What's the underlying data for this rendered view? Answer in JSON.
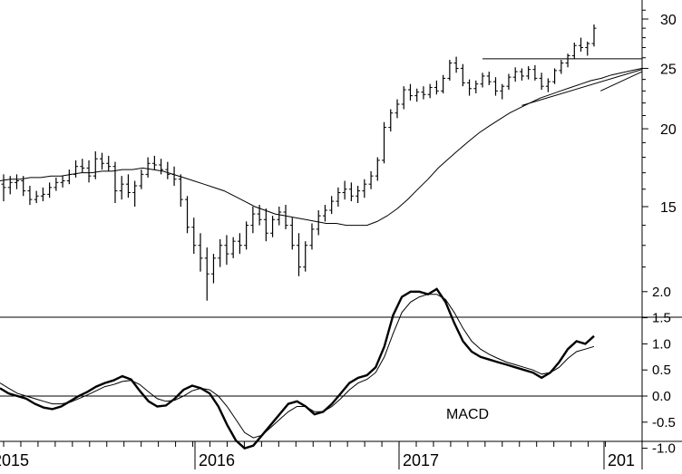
{
  "chart_data": [
    {
      "type": "ohlc",
      "scale": "log",
      "ylim": [
        10,
        32
      ],
      "y_ticks": [
        15,
        20,
        25,
        30
      ],
      "grid": false,
      "bar_color": "#000000",
      "line_color": "#000000",
      "ohlc": [
        [
          16.3,
          16.9,
          15.3,
          16.1
        ],
        [
          16.1,
          16.8,
          15.7,
          16.4
        ],
        [
          16.4,
          16.9,
          16.0,
          16.5
        ],
        [
          16.5,
          16.8,
          15.6,
          15.9
        ],
        [
          15.9,
          16.2,
          15.1,
          15.4
        ],
        [
          15.4,
          15.9,
          15.2,
          15.6
        ],
        [
          15.6,
          16.1,
          15.3,
          15.7
        ],
        [
          15.7,
          16.4,
          15.5,
          16.1
        ],
        [
          16.1,
          16.7,
          15.9,
          16.4
        ],
        [
          16.4,
          16.8,
          16.1,
          16.5
        ],
        [
          16.5,
          17.2,
          16.3,
          16.9
        ],
        [
          16.9,
          17.8,
          16.7,
          17.4
        ],
        [
          17.4,
          17.9,
          17.0,
          17.3
        ],
        [
          17.3,
          17.8,
          16.4,
          16.8
        ],
        [
          16.8,
          18.4,
          16.6,
          17.9
        ],
        [
          17.9,
          18.3,
          17.2,
          17.6
        ],
        [
          17.6,
          18.1,
          17.1,
          17.4
        ],
        [
          17.4,
          17.7,
          15.2,
          15.9
        ],
        [
          15.9,
          16.8,
          15.4,
          16.3
        ],
        [
          16.3,
          16.9,
          15.5,
          15.8
        ],
        [
          15.8,
          16.5,
          15.0,
          16.2
        ],
        [
          16.2,
          17.2,
          16.0,
          16.9
        ],
        [
          16.9,
          18.0,
          16.7,
          17.6
        ],
        [
          17.6,
          18.1,
          17.2,
          17.5
        ],
        [
          17.5,
          17.9,
          16.9,
          17.2
        ],
        [
          17.2,
          17.7,
          16.6,
          16.9
        ],
        [
          16.9,
          17.4,
          16.2,
          16.6
        ],
        [
          16.6,
          16.9,
          15.0,
          15.4
        ],
        [
          15.4,
          15.6,
          13.6,
          13.9
        ],
        [
          13.9,
          14.4,
          12.6,
          13.0
        ],
        [
          13.0,
          13.6,
          11.8,
          12.4
        ],
        [
          12.4,
          12.9,
          10.6,
          11.7
        ],
        [
          11.7,
          12.6,
          11.3,
          12.4
        ],
        [
          12.4,
          13.3,
          12.0,
          13.0
        ],
        [
          13.0,
          13.5,
          12.1,
          12.6
        ],
        [
          12.6,
          13.4,
          12.4,
          13.2
        ],
        [
          13.2,
          13.6,
          12.6,
          13.0
        ],
        [
          13.0,
          14.2,
          12.8,
          14.0
        ],
        [
          14.0,
          15.0,
          13.6,
          14.6
        ],
        [
          14.6,
          15.1,
          14.0,
          14.3
        ],
        [
          14.3,
          14.9,
          13.2,
          13.6
        ],
        [
          13.6,
          14.5,
          13.4,
          14.3
        ],
        [
          14.3,
          15.0,
          14.0,
          14.7
        ],
        [
          14.7,
          15.1,
          13.8,
          14.0
        ],
        [
          14.0,
          14.4,
          12.8,
          13.0
        ],
        [
          13.0,
          13.6,
          11.6,
          12.0
        ],
        [
          12.0,
          13.2,
          11.8,
          13.0
        ],
        [
          13.0,
          14.1,
          12.8,
          13.8
        ],
        [
          13.8,
          14.8,
          13.5,
          14.5
        ],
        [
          14.5,
          15.1,
          14.2,
          14.8
        ],
        [
          14.8,
          15.6,
          14.6,
          15.3
        ],
        [
          15.3,
          16.1,
          15.0,
          15.8
        ],
        [
          15.8,
          16.5,
          15.4,
          16.0
        ],
        [
          16.0,
          16.4,
          15.3,
          15.6
        ],
        [
          15.6,
          16.2,
          15.2,
          15.9
        ],
        [
          15.9,
          16.6,
          15.5,
          16.3
        ],
        [
          16.3,
          17.1,
          16.0,
          16.8
        ],
        [
          16.8,
          18.0,
          16.5,
          17.8
        ],
        [
          17.8,
          20.5,
          17.6,
          20.1
        ],
        [
          20.1,
          21.5,
          19.8,
          21.2
        ],
        [
          21.2,
          22.3,
          20.8,
          21.9
        ],
        [
          21.9,
          23.4,
          21.5,
          23.1
        ],
        [
          23.1,
          23.6,
          22.2,
          22.6
        ],
        [
          22.6,
          23.2,
          22.1,
          22.9
        ],
        [
          22.9,
          23.4,
          22.3,
          22.7
        ],
        [
          22.7,
          23.6,
          22.4,
          23.3
        ],
        [
          23.3,
          23.9,
          22.7,
          23.0
        ],
        [
          23.0,
          24.4,
          22.8,
          24.1
        ],
        [
          24.1,
          25.8,
          23.9,
          25.5
        ],
        [
          25.5,
          26.1,
          24.6,
          25.0
        ],
        [
          25.0,
          25.4,
          23.4,
          23.7
        ],
        [
          23.7,
          24.0,
          22.6,
          23.2
        ],
        [
          23.2,
          23.9,
          22.8,
          23.6
        ],
        [
          23.6,
          24.6,
          23.3,
          24.3
        ],
        [
          24.3,
          24.7,
          23.5,
          23.8
        ],
        [
          23.8,
          24.2,
          22.6,
          23.0
        ],
        [
          23.0,
          23.6,
          22.3,
          23.4
        ],
        [
          23.4,
          24.5,
          23.1,
          24.2
        ],
        [
          24.2,
          25.1,
          23.8,
          24.7
        ],
        [
          24.7,
          25.0,
          23.9,
          24.3
        ],
        [
          24.3,
          25.2,
          24.0,
          24.9
        ],
        [
          24.9,
          25.3,
          23.9,
          24.1
        ],
        [
          24.1,
          24.6,
          23.1,
          23.4
        ],
        [
          23.4,
          24.1,
          22.9,
          23.8
        ],
        [
          23.8,
          25.0,
          23.6,
          24.8
        ],
        [
          24.8,
          25.8,
          24.5,
          25.5
        ],
        [
          25.5,
          26.4,
          25.1,
          26.2
        ],
        [
          26.2,
          27.5,
          25.9,
          27.2
        ],
        [
          27.2,
          28.0,
          26.6,
          27.0
        ],
        [
          27.0,
          27.6,
          26.2,
          27.4
        ],
        [
          27.4,
          29.4,
          27.1,
          29.0
        ]
      ],
      "moving_average": [
        16.5,
        16.6,
        16.6,
        16.7,
        16.7,
        16.8,
        16.8,
        16.9,
        17.0,
        17.0,
        17.1,
        17.1,
        17.2,
        17.2,
        17.3,
        17.2,
        17.1,
        16.9,
        16.7,
        16.5,
        16.3,
        16.1,
        15.9,
        15.6,
        15.3,
        15.0,
        14.8,
        14.6,
        14.5,
        14.4,
        14.3,
        14.2,
        14.1,
        14.1,
        14.0,
        14.0,
        14.0,
        14.2,
        14.5,
        14.9,
        15.4,
        16.0,
        16.6,
        17.3,
        17.9,
        18.5,
        19.1,
        19.7,
        20.2,
        20.7,
        21.2,
        21.6,
        22.0,
        22.4,
        22.7,
        23.0,
        23.3,
        23.6,
        23.9,
        24.1,
        24.4,
        24.6,
        24.8,
        25.0
      ],
      "ma_start_index": 6,
      "support_lines": [
        {
          "from": [
            73,
            25.9
          ],
          "to": [
            100,
            25.9
          ]
        },
        {
          "from": [
            79,
            21.8
          ],
          "to": [
            104,
            24.9
          ]
        },
        {
          "from": [
            91,
            23.0
          ],
          "to": [
            101,
            24.7
          ]
        }
      ]
    },
    {
      "type": "line",
      "annotation": "MACD",
      "ylim": [
        -1.2,
        2.3
      ],
      "y_ticks": [
        "2.0",
        "1.5",
        "1.0",
        "0.5",
        "0.0",
        "-0.5",
        "-1.0"
      ],
      "zero_line": true,
      "series": [
        {
          "style": "thick",
          "values": [
            0.15,
            0.05,
            0.0,
            -0.05,
            -0.15,
            -0.22,
            -0.25,
            -0.2,
            -0.1,
            0.0,
            0.08,
            0.18,
            0.25,
            0.3,
            0.38,
            0.32,
            0.1,
            -0.1,
            -0.2,
            -0.18,
            -0.05,
            0.12,
            0.2,
            0.15,
            0.05,
            -0.2,
            -0.55,
            -0.85,
            -1.0,
            -0.95,
            -0.75,
            -0.55,
            -0.35,
            -0.15,
            -0.1,
            -0.2,
            -0.35,
            -0.3,
            -0.15,
            0.05,
            0.25,
            0.35,
            0.4,
            0.55,
            0.95,
            1.55,
            1.9,
            2.0,
            2.0,
            1.95,
            2.05,
            1.8,
            1.4,
            1.05,
            0.85,
            0.75,
            0.7,
            0.65,
            0.6,
            0.55,
            0.5,
            0.45,
            0.35,
            0.45,
            0.65,
            0.9,
            1.05,
            1.0,
            1.15
          ]
        },
        {
          "style": "thin",
          "values": [
            0.25,
            0.15,
            0.05,
            0.0,
            -0.05,
            -0.1,
            -0.15,
            -0.15,
            -0.12,
            -0.05,
            0.02,
            0.1,
            0.18,
            0.22,
            0.28,
            0.3,
            0.22,
            0.08,
            -0.05,
            -0.1,
            -0.08,
            0.0,
            0.1,
            0.15,
            0.12,
            0.0,
            -0.2,
            -0.45,
            -0.7,
            -0.8,
            -0.75,
            -0.6,
            -0.45,
            -0.3,
            -0.2,
            -0.2,
            -0.3,
            -0.3,
            -0.2,
            -0.05,
            0.12,
            0.25,
            0.32,
            0.45,
            0.75,
            1.2,
            1.6,
            1.8,
            1.9,
            1.95,
            1.95,
            1.85,
            1.6,
            1.3,
            1.05,
            0.9,
            0.8,
            0.72,
            0.65,
            0.6,
            0.55,
            0.5,
            0.42,
            0.45,
            0.55,
            0.72,
            0.85,
            0.9,
            0.95
          ]
        }
      ]
    }
  ],
  "x_axis": {
    "labels": [
      "2015",
      "2016",
      "2017",
      "201"
    ]
  }
}
